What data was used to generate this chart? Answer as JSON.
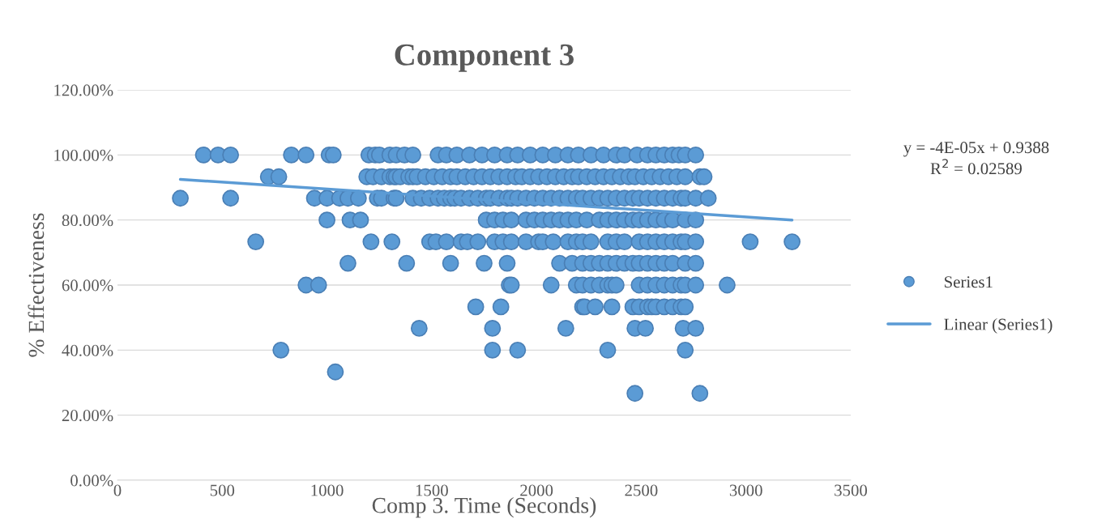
{
  "chart_data": {
    "type": "scatter",
    "title": "Component 3",
    "xlabel": "Comp 3. Time (Seconds)",
    "ylabel": "% Effectiveness",
    "xlim": [
      0,
      3500
    ],
    "xticks": [
      0,
      500,
      1000,
      1500,
      2000,
      2500,
      3000,
      3500
    ],
    "ylim": [
      0,
      1.2
    ],
    "yticks": [
      {
        "value": 0,
        "label": "0.00%"
      },
      {
        "value": 0.2,
        "label": "20.00%"
      },
      {
        "value": 0.4,
        "label": "40.00%"
      },
      {
        "value": 0.6,
        "label": "60.00%"
      },
      {
        "value": 0.8,
        "label": "80.00%"
      },
      {
        "value": 1.0,
        "label": "100.00%"
      },
      {
        "value": 1.2,
        "label": "120.00%"
      }
    ],
    "grid": "y",
    "legend": "right",
    "marker": "circle",
    "annotations": [
      "y = -4E-05x + 0.9388",
      "R$^{2}$ = 0.02589"
    ],
    "series": [
      {
        "name": "Series1",
        "color": "#5b9bd5",
        "x": [
          410,
          480,
          540,
          830,
          900,
          1010,
          1030,
          1200,
          1230,
          1250,
          1300,
          1330,
          1370,
          1410,
          1530,
          1570,
          1620,
          1680,
          1740,
          1800,
          1860,
          1910,
          1970,
          2030,
          2090,
          2150,
          2200,
          2260,
          2320,
          2380,
          2420,
          2480,
          2530,
          2570,
          2610,
          2650,
          2680,
          2710,
          2760,
          720,
          770,
          1190,
          1220,
          1260,
          1300,
          1320,
          1330,
          1350,
          1390,
          1410,
          1430,
          1470,
          1510,
          1550,
          1590,
          1620,
          1660,
          1700,
          1740,
          1780,
          1820,
          1860,
          1900,
          1930,
          1970,
          2010,
          2050,
          2090,
          2130,
          2170,
          2200,
          2240,
          2280,
          2320,
          2360,
          2400,
          2440,
          2470,
          2510,
          2550,
          2590,
          2630,
          2670,
          2710,
          2780,
          2800,
          300,
          540,
          940,
          1000,
          1060,
          1100,
          1150,
          1240,
          1260,
          1320,
          1330,
          1410,
          1450,
          1490,
          1530,
          1560,
          1590,
          1610,
          1640,
          1680,
          1720,
          1760,
          1780,
          1820,
          1860,
          1880,
          1910,
          1950,
          1990,
          2030,
          2070,
          2110,
          2150,
          2190,
          2220,
          2260,
          2300,
          2340,
          2380,
          2420,
          2460,
          2490,
          2530,
          2570,
          2610,
          2650,
          2690,
          2710,
          2760,
          2820,
          1000,
          1110,
          1160,
          1760,
          1800,
          1840,
          1880,
          1950,
          1990,
          2030,
          2070,
          2110,
          2150,
          2190,
          2240,
          2300,
          2340,
          2380,
          2420,
          2460,
          2490,
          2530,
          2570,
          2610,
          2650,
          2710,
          2760,
          660,
          1210,
          1310,
          1490,
          1520,
          1570,
          1640,
          1670,
          1720,
          1800,
          1840,
          1880,
          1950,
          2010,
          2030,
          2080,
          2150,
          2190,
          2220,
          2260,
          2340,
          2380,
          2420,
          2490,
          2530,
          2570,
          2610,
          2650,
          2690,
          2710,
          2760,
          3020,
          3220,
          1100,
          1380,
          1590,
          1750,
          1860,
          2110,
          2170,
          2220,
          2260,
          2300,
          2340,
          2380,
          2420,
          2460,
          2490,
          2530,
          2570,
          2610,
          2650,
          2710,
          2760,
          900,
          960,
          1870,
          1880,
          2070,
          2190,
          2220,
          2260,
          2300,
          2340,
          2360,
          2380,
          2490,
          2530,
          2570,
          2610,
          2650,
          2690,
          2710,
          2760,
          2910,
          1710,
          1830,
          2220,
          2230,
          2280,
          2360,
          2460,
          2490,
          2530,
          2550,
          2570,
          2610,
          2650,
          2690,
          2710,
          1440,
          1790,
          2140,
          2470,
          2520,
          2700,
          2760,
          780,
          1790,
          1910,
          2340,
          2710,
          1040,
          2470,
          2780
        ],
        "values": [
          1,
          1,
          1,
          1,
          1,
          1,
          1,
          1,
          1,
          1,
          1,
          1,
          1,
          1,
          1,
          1,
          1,
          1,
          1,
          1,
          1,
          1,
          1,
          1,
          1,
          1,
          1,
          1,
          1,
          1,
          1,
          1,
          1,
          1,
          1,
          1,
          1,
          1,
          1,
          0.933,
          0.933,
          0.933,
          0.933,
          0.933,
          0.933,
          0.933,
          0.933,
          0.933,
          0.933,
          0.933,
          0.933,
          0.933,
          0.933,
          0.933,
          0.933,
          0.933,
          0.933,
          0.933,
          0.933,
          0.933,
          0.933,
          0.933,
          0.933,
          0.933,
          0.933,
          0.933,
          0.933,
          0.933,
          0.933,
          0.933,
          0.933,
          0.933,
          0.933,
          0.933,
          0.933,
          0.933,
          0.933,
          0.933,
          0.933,
          0.933,
          0.933,
          0.933,
          0.933,
          0.933,
          0.933,
          0.933,
          0.867,
          0.867,
          0.867,
          0.867,
          0.867,
          0.867,
          0.867,
          0.867,
          0.867,
          0.867,
          0.867,
          0.867,
          0.867,
          0.867,
          0.867,
          0.867,
          0.867,
          0.867,
          0.867,
          0.867,
          0.867,
          0.867,
          0.867,
          0.867,
          0.867,
          0.867,
          0.867,
          0.867,
          0.867,
          0.867,
          0.867,
          0.867,
          0.867,
          0.867,
          0.867,
          0.867,
          0.867,
          0.867,
          0.867,
          0.867,
          0.867,
          0.867,
          0.867,
          0.867,
          0.867,
          0.867,
          0.867,
          0.867,
          0.867,
          0.867,
          0.8,
          0.8,
          0.8,
          0.8,
          0.8,
          0.8,
          0.8,
          0.8,
          0.8,
          0.8,
          0.8,
          0.8,
          0.8,
          0.8,
          0.8,
          0.8,
          0.8,
          0.8,
          0.8,
          0.8,
          0.8,
          0.8,
          0.8,
          0.8,
          0.8,
          0.8,
          0.8,
          0.733,
          0.733,
          0.733,
          0.733,
          0.733,
          0.733,
          0.733,
          0.733,
          0.733,
          0.733,
          0.733,
          0.733,
          0.733,
          0.733,
          0.733,
          0.733,
          0.733,
          0.733,
          0.733,
          0.733,
          0.733,
          0.733,
          0.733,
          0.733,
          0.733,
          0.733,
          0.733,
          0.733,
          0.733,
          0.733,
          0.733,
          0.733,
          0.733,
          0.667,
          0.667,
          0.667,
          0.667,
          0.667,
          0.667,
          0.667,
          0.667,
          0.667,
          0.667,
          0.667,
          0.667,
          0.667,
          0.667,
          0.667,
          0.667,
          0.667,
          0.667,
          0.667,
          0.667,
          0.667,
          0.6,
          0.6,
          0.6,
          0.6,
          0.6,
          0.6,
          0.6,
          0.6,
          0.6,
          0.6,
          0.6,
          0.6,
          0.6,
          0.6,
          0.6,
          0.6,
          0.6,
          0.6,
          0.6,
          0.6,
          0.6,
          0.533,
          0.533,
          0.533,
          0.533,
          0.533,
          0.533,
          0.533,
          0.533,
          0.533,
          0.533,
          0.533,
          0.533,
          0.533,
          0.533,
          0.533,
          0.467,
          0.467,
          0.467,
          0.467,
          0.467,
          0.467,
          0.467,
          0.4,
          0.4,
          0.4,
          0.4,
          0.4,
          0.333,
          0.267,
          0.267
        ]
      },
      {
        "name": "Linear (Series1)",
        "type": "line",
        "color": "#5b9bd5",
        "line_style": "solid",
        "marker": "none",
        "x": [
          300,
          3220
        ],
        "values": [
          0.925,
          0.8
        ]
      }
    ]
  }
}
